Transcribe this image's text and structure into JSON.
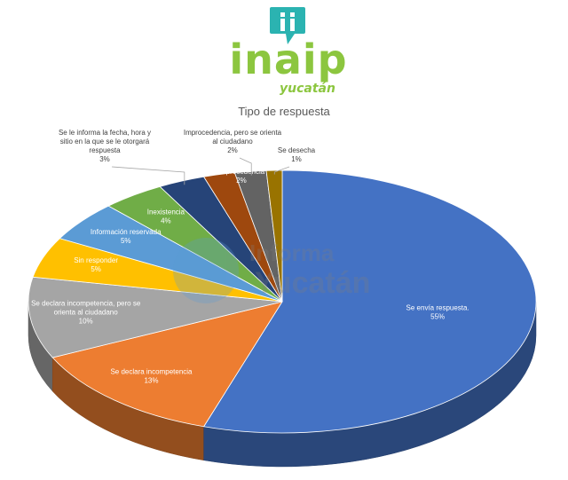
{
  "logo": {
    "name": "inaip",
    "sub": "yucatán",
    "icon": "chat-bubble-info-icon",
    "color": "#8cc63f"
  },
  "watermark": {
    "line1": "Informa",
    "line2": "Yucatán"
  },
  "chart_data": {
    "type": "pie",
    "title": "Tipo de respuesta",
    "legend": "none",
    "slices": [
      {
        "label": "Se envía respuesta.",
        "value": 55,
        "pct": "55%",
        "color": "#4472c4"
      },
      {
        "label": "Se declara incompetencia",
        "value": 13,
        "pct": "13%",
        "color": "#ed7d31"
      },
      {
        "label": "Se declara incompetencia, pero se orienta al ciudadano",
        "value": 10,
        "pct": "10%",
        "color": "#a5a5a5"
      },
      {
        "label": "Sin responder",
        "value": 5,
        "pct": "5%",
        "color": "#ffc000"
      },
      {
        "label": "Información reservada",
        "value": 5,
        "pct": "5%",
        "color": "#5b9bd5"
      },
      {
        "label": "Inexistencia",
        "value": 4,
        "pct": "4%",
        "color": "#70ad47"
      },
      {
        "label": "Se le informa la fecha, hora y sitio en la que se le otorgará respuesta",
        "value": 3,
        "pct": "3%",
        "color": "#264478"
      },
      {
        "label": "Improcedencia",
        "value": 2,
        "pct": "2%",
        "color": "#9e480e"
      },
      {
        "label": "Improcedencia, pero se orienta al ciudadano",
        "value": 2,
        "pct": "2%",
        "color": "#636363"
      },
      {
        "label": "Se desecha",
        "value": 1,
        "pct": "1%",
        "color": "#997300"
      }
    ]
  }
}
